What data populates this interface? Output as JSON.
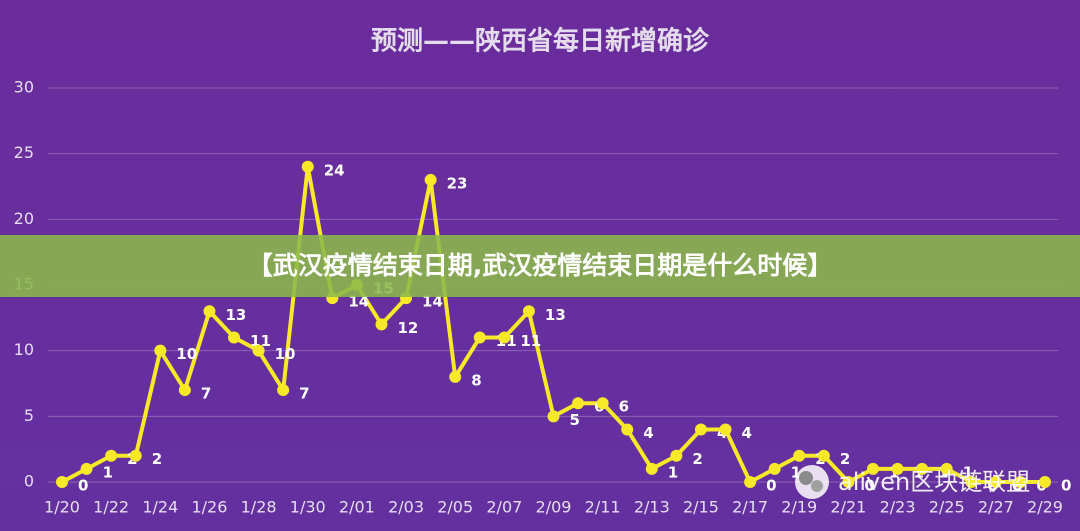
{
  "chart_data": {
    "type": "line",
    "title": "预测——陕西省每日新增确诊",
    "categories": [
      "1/20",
      null,
      "1/22",
      null,
      "1/24",
      null,
      "1/26",
      null,
      "1/28",
      null,
      "1/30",
      null,
      "2/01",
      null,
      "2/03",
      null,
      "2/05",
      null,
      "2/07",
      null,
      "2/09",
      null,
      "2/11",
      null,
      "2/13",
      null,
      "2/15",
      null,
      "2/17",
      null,
      "2/19",
      null,
      "2/21",
      null,
      "2/23",
      null,
      "2/25",
      null,
      "2/27",
      null,
      "2/29"
    ],
    "series": [
      {
        "color": "#f7e928",
        "values": [
          0,
          1,
          2,
          2,
          10,
          7,
          13,
          11,
          10,
          7,
          24,
          14,
          15,
          12,
          14,
          23,
          8,
          11,
          11,
          13,
          5,
          6,
          6,
          4,
          1,
          2,
          4,
          4,
          0,
          1,
          2,
          2,
          0,
          1,
          1,
          1,
          1,
          0,
          0,
          0,
          0
        ]
      }
    ],
    "ylim": [
      0,
      30
    ],
    "yticks": [
      0,
      5,
      10,
      15,
      20,
      25,
      30
    ],
    "grid": true
  },
  "banner": "【武汉疫情结束日期,武汉疫情结束日期是什么时候】",
  "watermark": "aliven区块链联盟"
}
